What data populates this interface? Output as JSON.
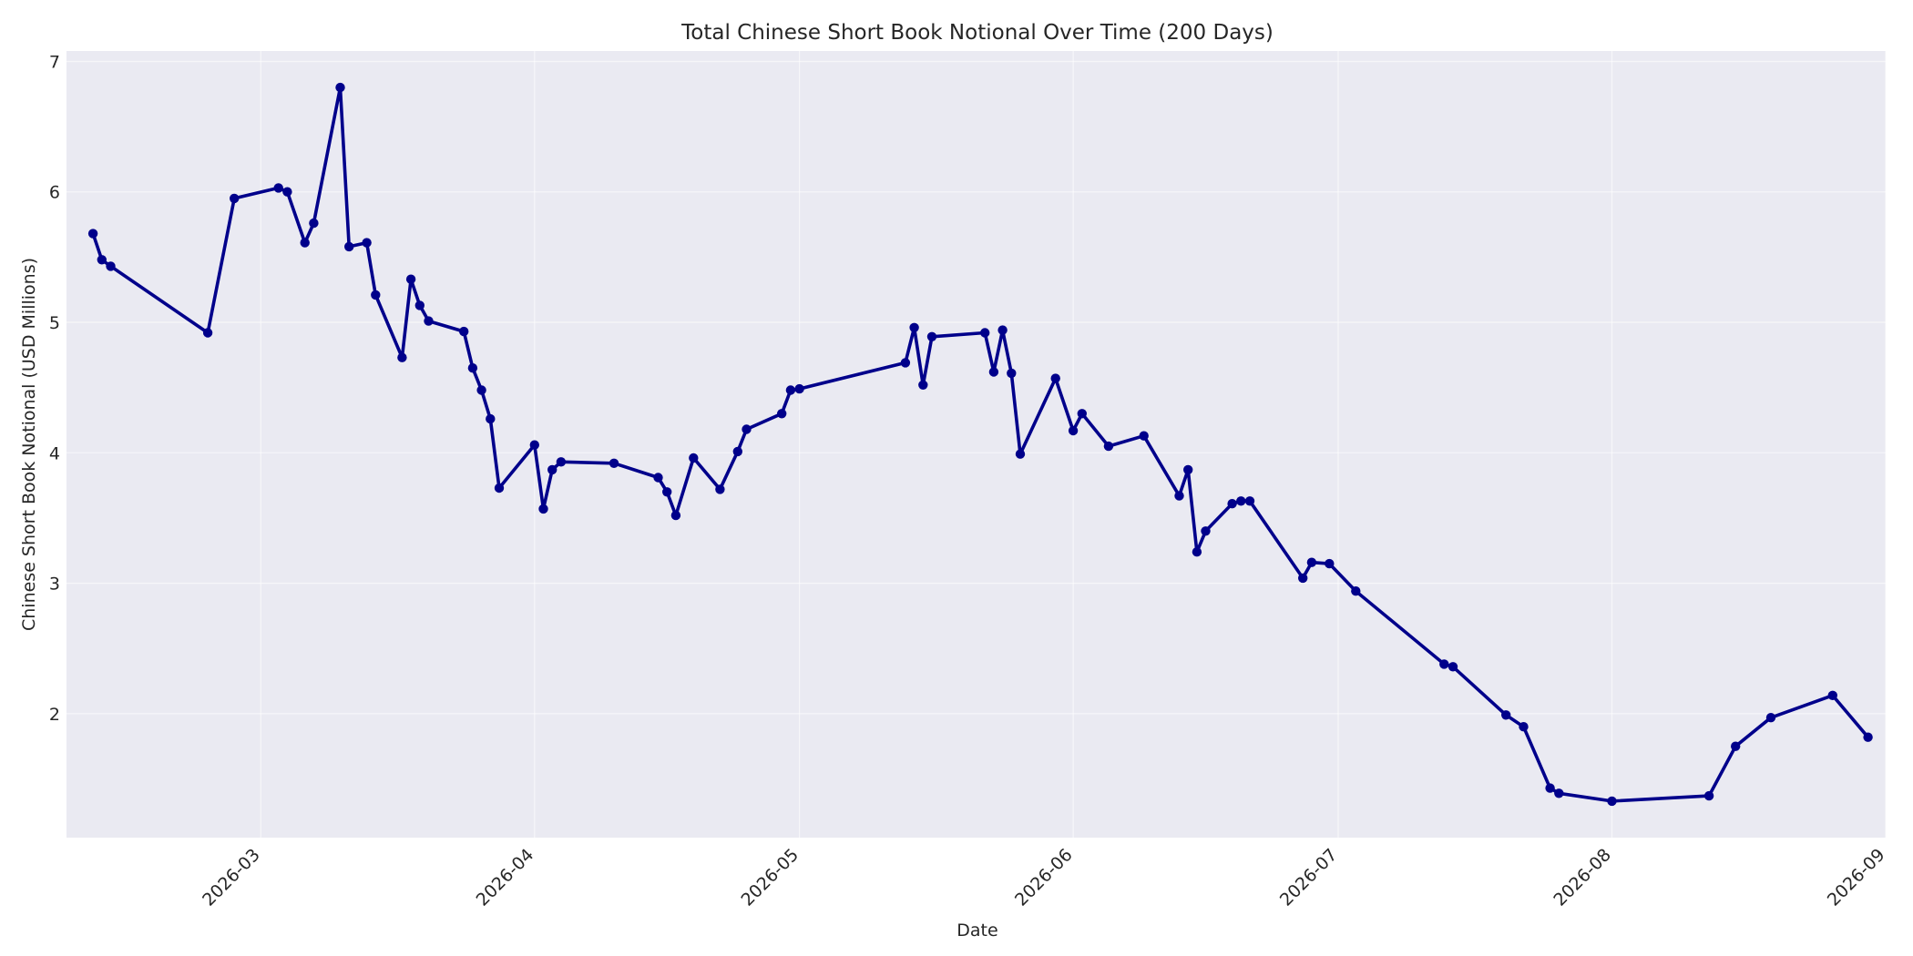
{
  "chart_data": {
    "type": "line",
    "title": "Total Chinese Short Book Notional Over Time (200 Days)",
    "xlabel": "Date",
    "ylabel": "Chinese Short Book Notional (USD Millions)",
    "xlim": [
      "2026-02-07",
      "2026-09-01"
    ],
    "ylim": [
      1.05,
      7.08
    ],
    "x_ticks": [
      {
        "date": "2026-03-01",
        "label": "2026-03"
      },
      {
        "date": "2026-04-01",
        "label": "2026-04"
      },
      {
        "date": "2026-05-01",
        "label": "2026-05"
      },
      {
        "date": "2026-06-01",
        "label": "2026-06"
      },
      {
        "date": "2026-07-01",
        "label": "2026-07"
      },
      {
        "date": "2026-08-01",
        "label": "2026-08"
      },
      {
        "date": "2026-09-01",
        "label": "2026-09"
      }
    ],
    "y_ticks": [
      2,
      3,
      4,
      5,
      6,
      7
    ],
    "grid": true,
    "colors": {
      "line": "#00008b",
      "plot_background": "#eaeaf2",
      "grid": "#ffffff"
    },
    "series": [
      {
        "points": [
          [
            "2026-02-10",
            5.68
          ],
          [
            "2026-02-11",
            5.48
          ],
          [
            "2026-02-12",
            5.43
          ],
          [
            "2026-02-23",
            4.92
          ],
          [
            "2026-02-26",
            5.95
          ],
          [
            "2026-03-03",
            6.03
          ],
          [
            "2026-03-04",
            6.0
          ],
          [
            "2026-03-06",
            5.61
          ],
          [
            "2026-03-07",
            5.76
          ],
          [
            "2026-03-10",
            6.8
          ],
          [
            "2026-03-11",
            5.58
          ],
          [
            "2026-03-13",
            5.61
          ],
          [
            "2026-03-14",
            5.21
          ],
          [
            "2026-03-17",
            4.73
          ],
          [
            "2026-03-18",
            5.33
          ],
          [
            "2026-03-19",
            5.13
          ],
          [
            "2026-03-20",
            5.01
          ],
          [
            "2026-03-24",
            4.93
          ],
          [
            "2026-03-25",
            4.65
          ],
          [
            "2026-03-26",
            4.48
          ],
          [
            "2026-03-27",
            4.26
          ],
          [
            "2026-03-28",
            3.73
          ],
          [
            "2026-04-01",
            4.06
          ],
          [
            "2026-04-02",
            3.57
          ],
          [
            "2026-04-03",
            3.87
          ],
          [
            "2026-04-04",
            3.93
          ],
          [
            "2026-04-10",
            3.92
          ],
          [
            "2026-04-15",
            3.81
          ],
          [
            "2026-04-16",
            3.7
          ],
          [
            "2026-04-17",
            3.52
          ],
          [
            "2026-04-19",
            3.96
          ],
          [
            "2026-04-22",
            3.72
          ],
          [
            "2026-04-24",
            4.01
          ],
          [
            "2026-04-25",
            4.18
          ],
          [
            "2026-04-29",
            4.3
          ],
          [
            "2026-04-30",
            4.48
          ],
          [
            "2026-05-01",
            4.49
          ],
          [
            "2026-05-13",
            4.69
          ],
          [
            "2026-05-14",
            4.96
          ],
          [
            "2026-05-15",
            4.52
          ],
          [
            "2026-05-16",
            4.89
          ],
          [
            "2026-05-22",
            4.92
          ],
          [
            "2026-05-23",
            4.62
          ],
          [
            "2026-05-24",
            4.94
          ],
          [
            "2026-05-25",
            4.61
          ],
          [
            "2026-05-26",
            3.99
          ],
          [
            "2026-05-30",
            4.57
          ],
          [
            "2026-06-01",
            4.17
          ],
          [
            "2026-06-02",
            4.3
          ],
          [
            "2026-06-05",
            4.05
          ],
          [
            "2026-06-09",
            4.13
          ],
          [
            "2026-06-13",
            3.67
          ],
          [
            "2026-06-14",
            3.87
          ],
          [
            "2026-06-15",
            3.24
          ],
          [
            "2026-06-16",
            3.4
          ],
          [
            "2026-06-19",
            3.61
          ],
          [
            "2026-06-20",
            3.63
          ],
          [
            "2026-06-21",
            3.63
          ],
          [
            "2026-06-27",
            3.04
          ],
          [
            "2026-06-28",
            3.16
          ],
          [
            "2026-06-30",
            3.15
          ],
          [
            "2026-07-03",
            2.94
          ],
          [
            "2026-07-13",
            2.38
          ],
          [
            "2026-07-14",
            2.36
          ],
          [
            "2026-07-20",
            1.99
          ],
          [
            "2026-07-22",
            1.9
          ],
          [
            "2026-07-25",
            1.43
          ],
          [
            "2026-07-26",
            1.39
          ],
          [
            "2026-08-01",
            1.33
          ],
          [
            "2026-08-12",
            1.37
          ],
          [
            "2026-08-15",
            1.75
          ],
          [
            "2026-08-19",
            1.97
          ],
          [
            "2026-08-26",
            2.14
          ],
          [
            "2026-08-30",
            1.82
          ]
        ]
      }
    ]
  }
}
